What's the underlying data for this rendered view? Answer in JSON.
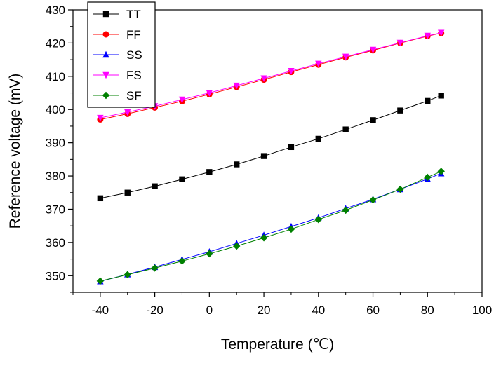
{
  "chart_data": {
    "type": "line",
    "xlabel": "Temperature (℃)",
    "ylabel": "Reference voltage (mV)",
    "xlim": [
      -50,
      100
    ],
    "ylim": [
      345,
      430
    ],
    "x_ticks": [
      -40,
      -20,
      0,
      20,
      40,
      60,
      80,
      100
    ],
    "y_ticks": [
      350,
      360,
      370,
      380,
      390,
      400,
      410,
      420,
      430
    ],
    "legend_position": "top-left",
    "grid": false,
    "x": [
      -40,
      -30,
      -20,
      -10,
      0,
      10,
      20,
      30,
      40,
      50,
      60,
      70,
      80,
      85
    ],
    "series": [
      {
        "name": "TT",
        "color": "#000000",
        "marker": "square",
        "values": [
          373.3,
          375.0,
          376.9,
          379.0,
          381.2,
          383.5,
          386.0,
          388.7,
          391.2,
          394.0,
          396.8,
          399.7,
          402.6,
          404.2
        ]
      },
      {
        "name": "FF",
        "color": "#ff0000",
        "marker": "circle",
        "values": [
          397.0,
          398.7,
          400.6,
          402.5,
          404.6,
          406.8,
          409.0,
          411.3,
          413.5,
          415.7,
          417.8,
          420.0,
          422.1,
          423.0
        ]
      },
      {
        "name": "SS",
        "color": "#0000ff",
        "marker": "triangle-up",
        "values": [
          348.3,
          350.4,
          352.6,
          354.9,
          357.2,
          359.7,
          362.2,
          364.8,
          367.4,
          370.2,
          373.0,
          376.0,
          379.1,
          380.8
        ]
      },
      {
        "name": "FS",
        "color": "#ff00ff",
        "marker": "triangle-down",
        "values": [
          397.5,
          399.2,
          401.0,
          403.0,
          405.0,
          407.2,
          409.4,
          411.6,
          413.8,
          415.9,
          418.0,
          420.1,
          422.2,
          423.1
        ]
      },
      {
        "name": "SF",
        "color": "#008000",
        "marker": "diamond",
        "values": [
          348.4,
          350.3,
          352.3,
          354.4,
          356.6,
          358.9,
          361.4,
          364.0,
          366.9,
          369.7,
          372.8,
          376.0,
          379.6,
          381.4
        ]
      }
    ]
  }
}
